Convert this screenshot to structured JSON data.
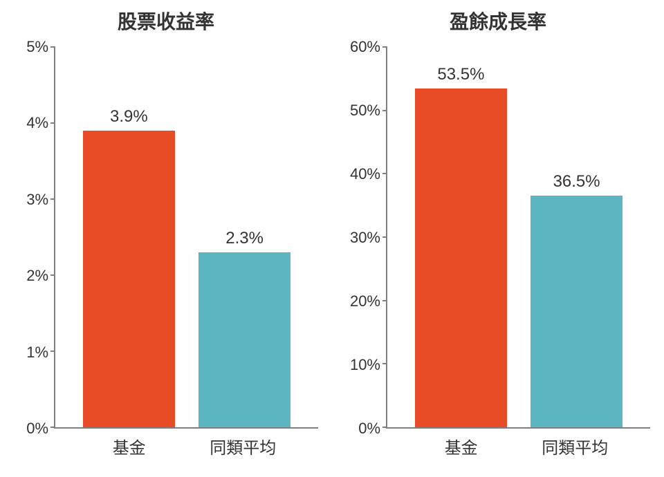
{
  "background_color": "#ffffff",
  "axis_color": "#7f7f7f",
  "text_color": "#333333",
  "title_fontsize": 28,
  "tick_fontsize": 22,
  "category_fontsize": 24,
  "value_label_fontsize": 24,
  "charts": [
    {
      "title": "股票收益率",
      "ymin": 0,
      "ymax": 5,
      "ytick_step": 1,
      "ytick_suffix": "%",
      "categories": [
        "基金",
        "同類平均"
      ],
      "values": [
        3.9,
        2.3
      ],
      "value_labels": [
        "3.9%",
        "2.3%"
      ],
      "bar_colors": [
        "#e84c27",
        "#5bb6c2"
      ],
      "bar_width_ratio": 0.4
    },
    {
      "title": "盈餘成長率",
      "ymin": 0,
      "ymax": 60,
      "ytick_step": 10,
      "ytick_suffix": "%",
      "categories": [
        "基金",
        "同類平均"
      ],
      "values": [
        53.5,
        36.5
      ],
      "value_labels": [
        "53.5%",
        "36.5%"
      ],
      "bar_colors": [
        "#e84c27",
        "#5bb6c2"
      ],
      "bar_width_ratio": 0.4
    }
  ]
}
